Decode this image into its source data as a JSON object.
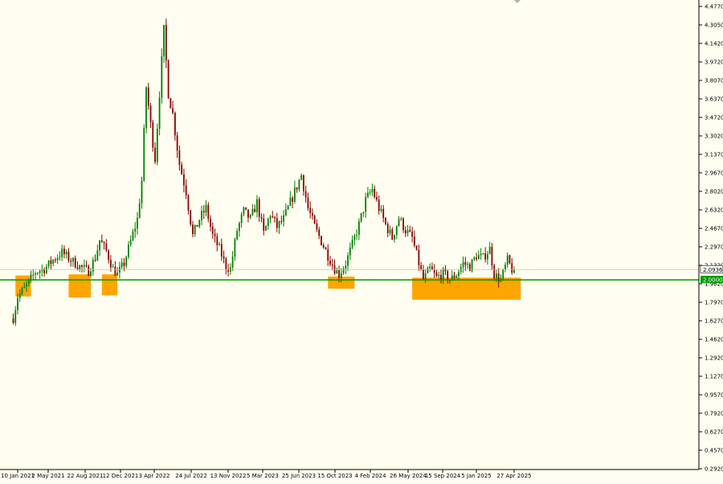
{
  "chart_data": {
    "type": "candlestick",
    "title": "",
    "xlabel": "",
    "ylabel": "",
    "ylim": [
      0.2,
      4.8
    ],
    "y_ticks": [
      "4.4770",
      "4.3050",
      "4.1420",
      "3.9720",
      "3.8070",
      "3.6370",
      "3.4720",
      "3.3020",
      "3.1370",
      "2.9670",
      "2.8020",
      "2.6320",
      "2.4670",
      "2.2970",
      "2.1320",
      "1.9620",
      "1.7970",
      "1.6270",
      "1.4620",
      "1.2920",
      "1.1270",
      "0.9570",
      "0.7920",
      "0.6270",
      "0.4570",
      "0.2920"
    ],
    "x_ticks": [
      "10 Jan 2021",
      "2 May 2021",
      "22 Aug 2021",
      "12 Dec 2021",
      "3 Apr 2022",
      "24 Jul 2022",
      "13 Nov 2022",
      "5 Mar 2023",
      "25 Jun 2023",
      "15 Oct 2023",
      "4 Feb 2024",
      "26 May 2024",
      "15 Sep 2024",
      "5 Jan 2025",
      "27 Apr 2025"
    ],
    "x_start": "2021-01-03",
    "x_end": "2025-05-18",
    "close_path": [
      [
        "2020-12-20",
        1.55
      ],
      [
        "2021-01-10",
        1.85
      ],
      [
        "2021-02-07",
        1.95
      ],
      [
        "2021-03-07",
        2.07
      ],
      [
        "2021-04-04",
        2.1
      ],
      [
        "2021-05-02",
        2.18
      ],
      [
        "2021-05-30",
        2.25
      ],
      [
        "2021-06-27",
        2.18
      ],
      [
        "2021-07-25",
        2.12
      ],
      [
        "2021-08-22",
        2.08
      ],
      [
        "2021-09-12",
        2.2
      ],
      [
        "2021-09-26",
        2.36
      ],
      [
        "2021-10-17",
        2.26
      ],
      [
        "2021-11-07",
        2.1
      ],
      [
        "2021-11-21",
        2.05
      ],
      [
        "2021-12-12",
        2.15
      ],
      [
        "2022-01-02",
        2.35
      ],
      [
        "2022-01-23",
        2.55
      ],
      [
        "2022-02-06",
        2.9
      ],
      [
        "2022-02-20",
        3.75
      ],
      [
        "2022-03-06",
        3.4
      ],
      [
        "2022-03-20",
        3.1
      ],
      [
        "2022-04-03",
        3.7
      ],
      [
        "2022-04-17",
        4.25
      ],
      [
        "2022-05-01",
        3.7
      ],
      [
        "2022-05-15",
        3.5
      ],
      [
        "2022-06-05",
        3.05
      ],
      [
        "2022-06-26",
        2.8
      ],
      [
        "2022-07-17",
        2.4
      ],
      [
        "2022-08-07",
        2.55
      ],
      [
        "2022-08-28",
        2.65
      ],
      [
        "2022-09-18",
        2.4
      ],
      [
        "2022-10-09",
        2.28
      ],
      [
        "2022-10-30",
        2.12
      ],
      [
        "2022-11-13",
        2.1
      ],
      [
        "2022-12-04",
        2.45
      ],
      [
        "2022-12-25",
        2.62
      ],
      [
        "2023-01-15",
        2.55
      ],
      [
        "2023-02-05",
        2.7
      ],
      [
        "2023-02-26",
        2.42
      ],
      [
        "2023-03-19",
        2.6
      ],
      [
        "2023-04-09",
        2.48
      ],
      [
        "2023-04-30",
        2.55
      ],
      [
        "2023-05-21",
        2.7
      ],
      [
        "2023-06-11",
        2.85
      ],
      [
        "2023-06-25",
        2.95
      ],
      [
        "2023-07-16",
        2.65
      ],
      [
        "2023-08-06",
        2.48
      ],
      [
        "2023-08-27",
        2.35
      ],
      [
        "2023-09-17",
        2.22
      ],
      [
        "2023-10-08",
        2.1
      ],
      [
        "2023-10-22",
        2.05
      ],
      [
        "2023-11-12",
        2.15
      ],
      [
        "2023-12-03",
        2.32
      ],
      [
        "2023-12-24",
        2.5
      ],
      [
        "2024-01-14",
        2.72
      ],
      [
        "2024-02-04",
        2.82
      ],
      [
        "2024-02-25",
        2.65
      ],
      [
        "2024-03-17",
        2.5
      ],
      [
        "2024-04-07",
        2.38
      ],
      [
        "2024-04-28",
        2.56
      ],
      [
        "2024-05-19",
        2.45
      ],
      [
        "2024-06-09",
        2.38
      ],
      [
        "2024-06-30",
        2.15
      ],
      [
        "2024-07-14",
        2.0
      ],
      [
        "2024-08-04",
        2.1
      ],
      [
        "2024-08-25",
        2.02
      ],
      [
        "2024-09-15",
        2.06
      ],
      [
        "2024-10-06",
        2.0
      ],
      [
        "2024-10-27",
        2.05
      ],
      [
        "2024-11-17",
        2.15
      ],
      [
        "2024-12-08",
        2.12
      ],
      [
        "2024-12-29",
        2.22
      ],
      [
        "2025-01-19",
        2.2
      ],
      [
        "2025-02-09",
        2.28
      ],
      [
        "2025-02-23",
        2.05
      ],
      [
        "2025-03-16",
        2.0
      ],
      [
        "2025-04-06",
        2.18
      ],
      [
        "2025-04-27",
        2.05
      ],
      [
        "2025-05-11",
        2.1
      ]
    ],
    "support_level": {
      "label": "2.0000",
      "value": 2.0,
      "color": "#009900"
    },
    "current_price": {
      "label": "2.0936",
      "value": 2.0936
    },
    "support_zones": [
      {
        "start": "2021-01-03",
        "end": "2021-02-21",
        "low": 1.85,
        "high": 2.04
      },
      {
        "start": "2021-06-20",
        "end": "2021-08-29",
        "low": 1.84,
        "high": 2.05
      },
      {
        "start": "2021-10-03",
        "end": "2021-11-21",
        "low": 1.86,
        "high": 2.05
      },
      {
        "start": "2023-09-17",
        "end": "2023-12-10",
        "low": 1.92,
        "high": 2.03
      },
      {
        "start": "2024-06-09",
        "end": "2025-05-18",
        "low": 1.82,
        "high": 2.02
      }
    ],
    "zone_color": "#ffa500",
    "bull_color": "#008000",
    "bear_color": "#8b0000"
  }
}
